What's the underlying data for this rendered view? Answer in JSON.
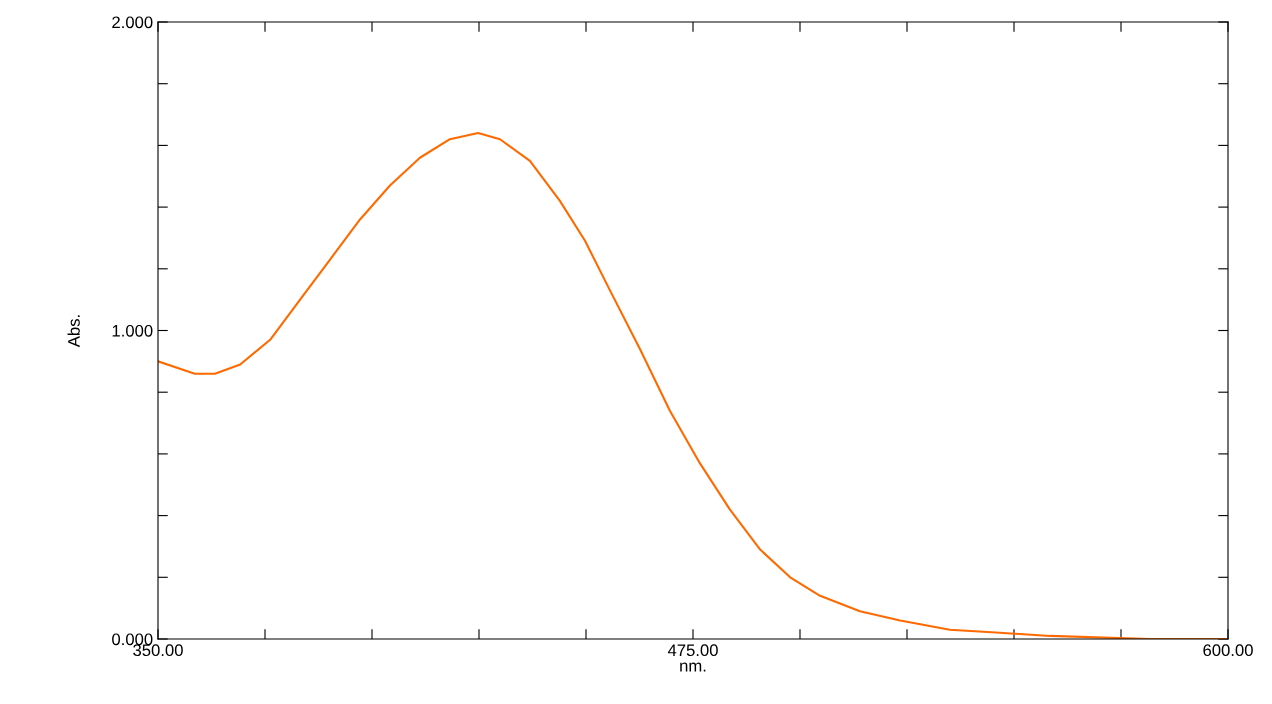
{
  "chart_data": {
    "type": "line",
    "xlabel": "nm.",
    "ylabel": "Abs.",
    "xlim": [
      350,
      600
    ],
    "ylim": [
      0,
      2
    ],
    "xticks": [
      {
        "value": 350,
        "label": "350.00"
      },
      {
        "value": 375,
        "label": null
      },
      {
        "value": 400,
        "label": null
      },
      {
        "value": 425,
        "label": null
      },
      {
        "value": 450,
        "label": null
      },
      {
        "value": 475,
        "label": "475.00"
      },
      {
        "value": 500,
        "label": null
      },
      {
        "value": 525,
        "label": null
      },
      {
        "value": 550,
        "label": null
      },
      {
        "value": 575,
        "label": null
      },
      {
        "value": 600,
        "label": "600.00"
      }
    ],
    "yticks": [
      {
        "value": 0,
        "label": "0.000"
      },
      {
        "value": 0.2,
        "label": null
      },
      {
        "value": 0.4,
        "label": null
      },
      {
        "value": 0.6,
        "label": null
      },
      {
        "value": 0.8,
        "label": null
      },
      {
        "value": 1,
        "label": "1.000"
      },
      {
        "value": 1.2,
        "label": null
      },
      {
        "value": 1.4,
        "label": null
      },
      {
        "value": 1.6,
        "label": null
      },
      {
        "value": 1.8,
        "label": null
      },
      {
        "value": 2,
        "label": "2.000"
      }
    ],
    "grid": false,
    "legend": false,
    "series": [
      {
        "color": "#ff6a00",
        "x": [
          350,
          358.6,
          363.3,
          369.2,
          376.2,
          383.2,
          390.2,
          397.2,
          404.2,
          411.2,
          418.2,
          424.8,
          429.9,
          436.9,
          443.9,
          449.8,
          455.6,
          462.6,
          469.6,
          476.6,
          483.6,
          490.7,
          497.7,
          504.7,
          514.0,
          523.4,
          535.0,
          546.7,
          558.4,
          581.8,
          600
        ],
        "values": [
          0.9,
          0.86,
          0.86,
          0.89,
          0.97,
          1.1,
          1.23,
          1.36,
          1.47,
          1.56,
          1.62,
          1.64,
          1.62,
          1.55,
          1.42,
          1.29,
          1.13,
          0.94,
          0.74,
          0.57,
          0.42,
          0.29,
          0.2,
          0.14,
          0.09,
          0.06,
          0.03,
          0.02,
          0.01,
          0.0,
          0.0
        ]
      }
    ]
  }
}
